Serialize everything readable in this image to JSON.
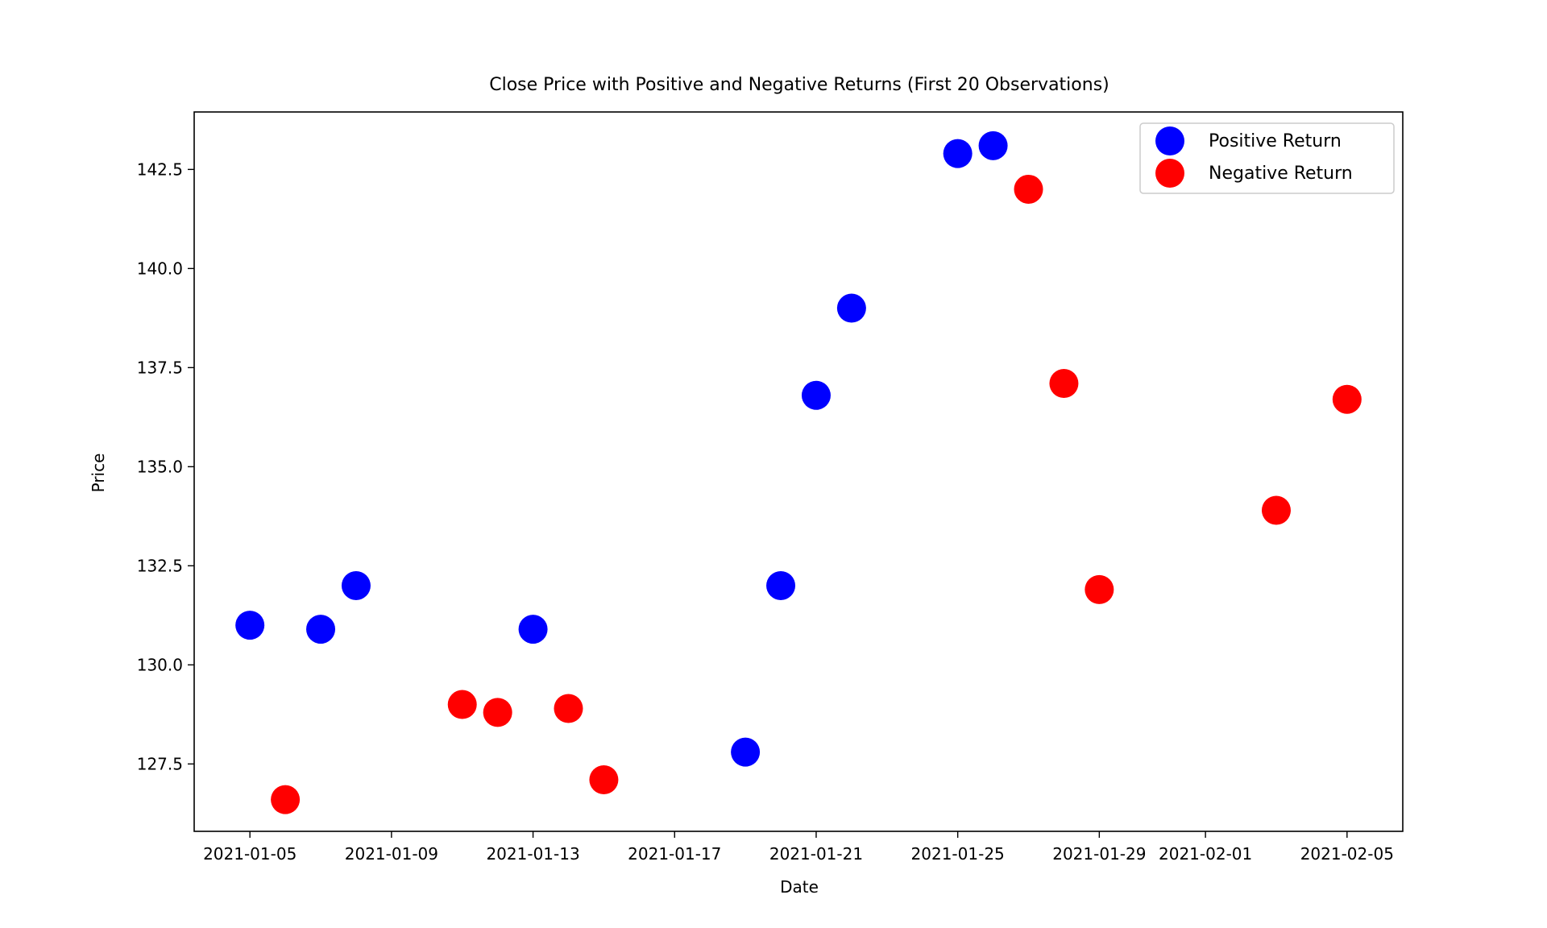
{
  "chart_data": {
    "type": "scatter",
    "title": "Close Price with Positive and Negative Returns (First 20 Observations)",
    "xlabel": "Date",
    "ylabel": "Price",
    "x_is_date": true,
    "xlim": [
      "2021-01-03 10:12",
      "2021-02-06 13:48"
    ],
    "ylim": [
      125.8,
      143.95
    ],
    "x_ticks": [
      "2021-01-05",
      "2021-01-09",
      "2021-01-13",
      "2021-01-17",
      "2021-01-21",
      "2021-01-25",
      "2021-01-29",
      "2021-02-01",
      "2021-02-05"
    ],
    "y_ticks": [
      127.5,
      130.0,
      132.5,
      135.0,
      137.5,
      140.0,
      142.5
    ],
    "y_tick_labels": [
      "127.5",
      "130.0",
      "132.5",
      "135.0",
      "137.5",
      "140.0",
      "142.5"
    ],
    "grid": false,
    "legend_position": "top-right",
    "series": [
      {
        "name": "Positive Return",
        "color": "#0000ff",
        "points": [
          {
            "x": "2021-01-05",
            "y": 131.0
          },
          {
            "x": "2021-01-07",
            "y": 130.9
          },
          {
            "x": "2021-01-08",
            "y": 132.0
          },
          {
            "x": "2021-01-13",
            "y": 130.9
          },
          {
            "x": "2021-01-19",
            "y": 127.8
          },
          {
            "x": "2021-01-20",
            "y": 132.0
          },
          {
            "x": "2021-01-21",
            "y": 136.8
          },
          {
            "x": "2021-01-22",
            "y": 139.0
          },
          {
            "x": "2021-01-25",
            "y": 142.9
          },
          {
            "x": "2021-01-26",
            "y": 143.1
          }
        ]
      },
      {
        "name": "Negative Return",
        "color": "#ff0000",
        "points": [
          {
            "x": "2021-01-06",
            "y": 126.6
          },
          {
            "x": "2021-01-11",
            "y": 129.0
          },
          {
            "x": "2021-01-12",
            "y": 128.8
          },
          {
            "x": "2021-01-14",
            "y": 128.9
          },
          {
            "x": "2021-01-15",
            "y": 127.1
          },
          {
            "x": "2021-01-27",
            "y": 142.0
          },
          {
            "x": "2021-01-28",
            "y": 137.1
          },
          {
            "x": "2021-01-29",
            "y": 131.9
          },
          {
            "x": "2021-02-03",
            "y": 133.9
          },
          {
            "x": "2021-02-05",
            "y": 136.7
          }
        ]
      }
    ]
  }
}
